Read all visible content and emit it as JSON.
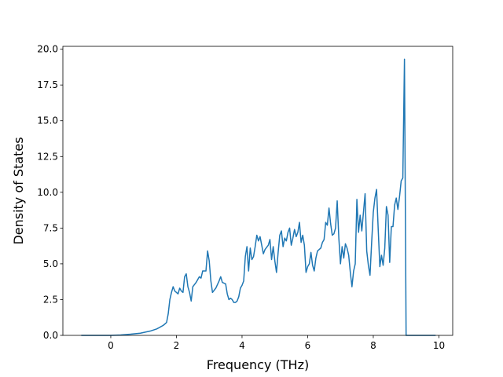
{
  "chart_data": {
    "type": "line",
    "xlabel": "Frequency (THz)",
    "ylabel": "Density of States",
    "x": [
      -0.9,
      -0.5,
      0,
      0.3,
      0.6,
      0.9,
      1.2,
      1.4,
      1.6,
      1.7,
      1.75,
      1.8,
      1.85,
      1.9,
      1.95,
      2.0,
      2.05,
      2.1,
      2.15,
      2.2,
      2.25,
      2.3,
      2.35,
      2.4,
      2.45,
      2.5,
      2.6,
      2.7,
      2.75,
      2.8,
      2.9,
      2.95,
      3.0,
      3.05,
      3.1,
      3.2,
      3.3,
      3.35,
      3.4,
      3.5,
      3.55,
      3.6,
      3.65,
      3.7,
      3.75,
      3.8,
      3.85,
      3.9,
      3.95,
      4.0,
      4.05,
      4.1,
      4.15,
      4.2,
      4.25,
      4.3,
      4.35,
      4.4,
      4.45,
      4.5,
      4.55,
      4.6,
      4.65,
      4.7,
      4.8,
      4.85,
      4.9,
      4.95,
      5.0,
      5.05,
      5.1,
      5.15,
      5.2,
      5.25,
      5.3,
      5.35,
      5.4,
      5.45,
      5.5,
      5.55,
      5.6,
      5.65,
      5.7,
      5.75,
      5.8,
      5.85,
      5.9,
      5.95,
      6.0,
      6.05,
      6.1,
      6.15,
      6.2,
      6.25,
      6.3,
      6.4,
      6.45,
      6.5,
      6.55,
      6.6,
      6.65,
      6.7,
      6.75,
      6.8,
      6.85,
      6.9,
      6.95,
      7.0,
      7.05,
      7.1,
      7.15,
      7.2,
      7.25,
      7.3,
      7.35,
      7.4,
      7.45,
      7.5,
      7.55,
      7.6,
      7.65,
      7.75,
      7.8,
      7.85,
      7.9,
      7.95,
      8.0,
      8.05,
      8.1,
      8.15,
      8.2,
      8.25,
      8.3,
      8.35,
      8.4,
      8.45,
      8.5,
      8.55,
      8.6,
      8.65,
      8.7,
      8.75,
      8.8,
      8.85,
      8.9,
      8.95,
      9.0,
      9.9
    ],
    "values": [
      0,
      0,
      0,
      0.03,
      0.08,
      0.15,
      0.3,
      0.45,
      0.7,
      0.9,
      1.5,
      2.5,
      3.0,
      3.4,
      3.1,
      3.0,
      2.9,
      3.3,
      3.1,
      3.0,
      4.1,
      4.3,
      3.4,
      3.0,
      2.4,
      3.4,
      3.7,
      4.1,
      4.0,
      4.5,
      4.5,
      5.9,
      5.2,
      3.8,
      3.0,
      3.3,
      3.8,
      4.1,
      3.7,
      3.6,
      2.9,
      2.5,
      2.6,
      2.5,
      2.3,
      2.3,
      2.4,
      2.7,
      3.3,
      3.5,
      3.8,
      5.5,
      6.2,
      4.5,
      6.1,
      5.3,
      5.5,
      6.2,
      7.0,
      6.6,
      6.9,
      6.3,
      5.7,
      6.0,
      6.3,
      6.7,
      5.3,
      6.2,
      5.2,
      4.4,
      5.8,
      7.0,
      7.3,
      6.2,
      6.8,
      6.6,
      7.2,
      7.5,
      6.3,
      6.8,
      7.4,
      6.9,
      7.2,
      7.9,
      6.5,
      7.0,
      6.3,
      4.4,
      4.8,
      5.0,
      5.8,
      4.9,
      4.5,
      5.4,
      5.9,
      6.1,
      6.5,
      6.7,
      7.9,
      7.7,
      8.9,
      7.8,
      7.0,
      7.1,
      7.5,
      9.4,
      6.8,
      5.0,
      6.2,
      5.4,
      6.4,
      6.1,
      5.6,
      4.4,
      3.4,
      4.5,
      5.0,
      9.5,
      7.2,
      8.4,
      7.3,
      9.9,
      5.9,
      4.9,
      4.2,
      6.5,
      8.6,
      9.6,
      10.2,
      7.4,
      4.8,
      5.6,
      4.9,
      6.1,
      9.0,
      8.4,
      5.1,
      7.6,
      7.6,
      9.1,
      9.6,
      8.8,
      9.7,
      10.8,
      11.0,
      19.3,
      0,
      0
    ],
    "color": "#1f77b4",
    "xlim": [
      -1.46,
      10.42
    ],
    "xticks": [
      0,
      2,
      4,
      6,
      8,
      10
    ],
    "ylim": [
      0,
      20.2
    ],
    "yticks": [
      {
        "value": 0,
        "label": "0.0"
      },
      {
        "value": 2.5,
        "label": "2.5"
      },
      {
        "value": 5,
        "label": "5.0"
      },
      {
        "value": 7.5,
        "label": "7.5"
      },
      {
        "value": 10,
        "label": "10.0"
      },
      {
        "value": 12.5,
        "label": "12.5"
      },
      {
        "value": 15,
        "label": "15.0"
      },
      {
        "value": 17.5,
        "label": "17.5"
      },
      {
        "value": 20,
        "label": "20.0"
      }
    ]
  }
}
